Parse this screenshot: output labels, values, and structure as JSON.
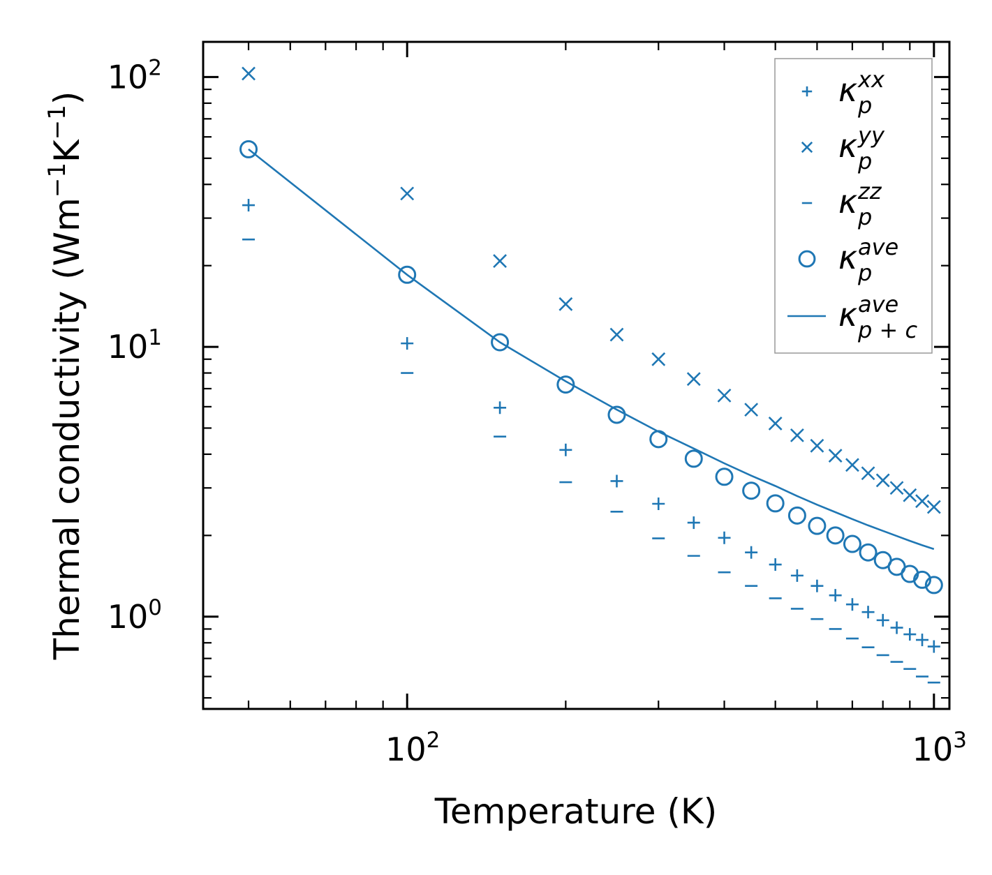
{
  "chart_data": {
    "type": "scatter",
    "xscale": "log",
    "yscale": "log",
    "xlabel": "Temperature (K)",
    "ylabel": {
      "main": "Thermal conductivity (Wm",
      "sup1": "−1",
      "mid": "K",
      "sup2": "−1",
      "end": ")"
    },
    "xlim": [
      41,
      1070
    ],
    "ylim": [
      0.455,
      135
    ],
    "x_ticks": [
      {
        "base": "10",
        "exp": "2",
        "value": 100
      },
      {
        "base": "10",
        "exp": "3",
        "value": 1000
      }
    ],
    "y_ticks": [
      {
        "base": "10",
        "exp": "0",
        "value": 1
      },
      {
        "base": "10",
        "exp": "1",
        "value": 10
      },
      {
        "base": "10",
        "exp": "2",
        "value": 100
      }
    ],
    "x": [
      50,
      100,
      150,
      200,
      250,
      300,
      350,
      400,
      450,
      500,
      550,
      600,
      650,
      700,
      750,
      800,
      850,
      900,
      950,
      1000
    ],
    "series": [
      {
        "name": "kappa_p_xx",
        "marker": "plus",
        "values": [
          33.5,
          10.3,
          5.95,
          4.15,
          3.18,
          2.62,
          2.23,
          1.96,
          1.73,
          1.56,
          1.42,
          1.3,
          1.2,
          1.11,
          1.04,
          0.97,
          0.91,
          0.86,
          0.82,
          0.775
        ]
      },
      {
        "name": "kappa_p_yy",
        "marker": "x",
        "values": [
          103,
          37.0,
          20.8,
          14.4,
          11.1,
          9.0,
          7.6,
          6.6,
          5.85,
          5.2,
          4.7,
          4.3,
          3.95,
          3.65,
          3.4,
          3.2,
          3.0,
          2.82,
          2.68,
          2.55
        ]
      },
      {
        "name": "kappa_p_zz",
        "marker": "dash",
        "values": [
          25.0,
          8.0,
          4.65,
          3.15,
          2.45,
          1.95,
          1.68,
          1.46,
          1.3,
          1.17,
          1.07,
          0.98,
          0.9,
          0.83,
          0.77,
          0.72,
          0.68,
          0.64,
          0.6,
          0.57
        ]
      },
      {
        "name": "kappa_p_ave",
        "marker": "circle",
        "values": [
          54.0,
          18.5,
          10.4,
          7.25,
          5.6,
          4.55,
          3.85,
          3.3,
          2.93,
          2.63,
          2.37,
          2.17,
          2.0,
          1.86,
          1.73,
          1.62,
          1.53,
          1.44,
          1.37,
          1.31
        ]
      },
      {
        "name": "kappa_p_c_ave",
        "marker": "line",
        "values": [
          54.0,
          18.5,
          10.4,
          7.45,
          5.85,
          4.85,
          4.2,
          3.7,
          3.33,
          3.05,
          2.8,
          2.6,
          2.44,
          2.3,
          2.18,
          2.08,
          1.99,
          1.91,
          1.84,
          1.78
        ]
      }
    ],
    "legend": {
      "position": "top-right",
      "entries": [
        {
          "symbol": "κ",
          "sub": "p",
          "sup": "xx"
        },
        {
          "symbol": "κ",
          "sub": "p",
          "sup": "yy"
        },
        {
          "symbol": "κ",
          "sub": "p",
          "sup": "zz"
        },
        {
          "symbol": "κ",
          "sub": "p",
          "sup": "ave"
        },
        {
          "symbol": "κ",
          "sub": "p + c",
          "sup": "ave"
        }
      ]
    },
    "color": "#1f77b4",
    "grid": false
  }
}
